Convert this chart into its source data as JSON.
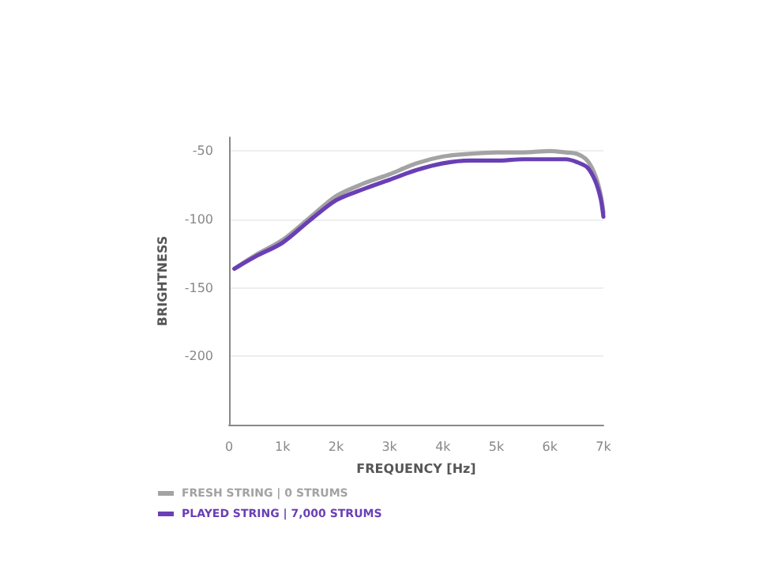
{
  "chart_data": {
    "type": "line",
    "xlabel": "FREQUENCY [Hz]",
    "ylabel": "BRIGHTNESS",
    "xlim": [
      0,
      7000
    ],
    "xticks": [
      {
        "value": 0,
        "label": "0"
      },
      {
        "value": 1000,
        "label": "1k"
      },
      {
        "value": 2000,
        "label": "2k"
      },
      {
        "value": 3000,
        "label": "3k"
      },
      {
        "value": 4000,
        "label": "4k"
      },
      {
        "value": 5000,
        "label": "5k"
      },
      {
        "value": 6000,
        "label": "6k"
      },
      {
        "value": 7000,
        "label": "7k"
      }
    ],
    "ylim": [
      -250,
      -40
    ],
    "yticks": [
      -50,
      -100,
      -150,
      -200
    ],
    "grid": "y",
    "legend": "bottom left",
    "marker": "none",
    "line_style": "solid",
    "series": [
      {
        "name": "FRESH STRING | 0 STRUMS",
        "color": "#a3a3a3",
        "x": [
          100,
          500,
          1000,
          1500,
          2000,
          2500,
          3000,
          3500,
          4000,
          4500,
          5000,
          5500,
          6000,
          6300,
          6500,
          6700,
          6850,
          6950,
          7000
        ],
        "values": [
          -136,
          -126,
          -115,
          -99,
          -83,
          -74,
          -67,
          -59,
          -54,
          -52,
          -51,
          -51,
          -50,
          -51,
          -52,
          -57,
          -68,
          -82,
          -95
        ]
      },
      {
        "name": "PLAYED STRING | 7,000 STRUMS",
        "color": "#6a3fb5",
        "x": [
          100,
          500,
          1000,
          1500,
          2000,
          2500,
          3000,
          3500,
          4000,
          4500,
          5000,
          5500,
          6000,
          6300,
          6500,
          6700,
          6850,
          6950,
          7000
        ],
        "values": [
          -136,
          -127,
          -117,
          -101,
          -86,
          -78,
          -71,
          -64,
          -59,
          -57,
          -57,
          -56,
          -56,
          -56,
          -58,
          -62,
          -72,
          -85,
          -98
        ]
      }
    ]
  }
}
